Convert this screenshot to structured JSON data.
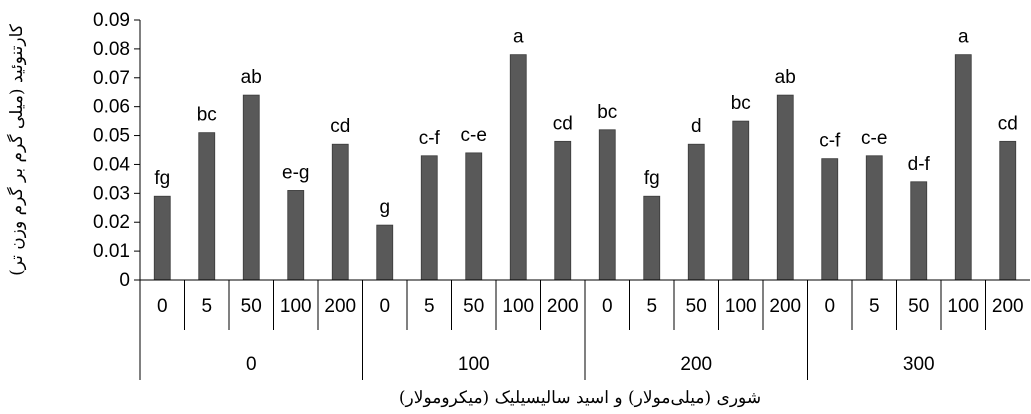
{
  "chart_data": {
    "type": "bar",
    "ylabel": "کارتنوئید (میلی گرم بر گرم وزن تر)",
    "xlabel": "شوری (میلی‌مولار) و اسید سالیسیلیک (میکرومولار)",
    "ylim": [
      0,
      0.09
    ],
    "yticks": [
      "0",
      "0.01",
      "0.02",
      "0.03",
      "0.04",
      "0.05",
      "0.06",
      "0.07",
      "0.08",
      "0.09"
    ],
    "grid": false,
    "legend": "none",
    "bar_color": "#595959",
    "groups": [
      {
        "label": "0",
        "categories": [
          "0",
          "5",
          "50",
          "100",
          "200"
        ],
        "values": [
          0.029,
          0.051,
          0.064,
          0.031,
          0.047
        ],
        "letters": [
          "fg",
          "bc",
          "ab",
          "e-g",
          "cd"
        ]
      },
      {
        "label": "100",
        "categories": [
          "0",
          "5",
          "50",
          "100",
          "200"
        ],
        "values": [
          0.019,
          0.043,
          0.044,
          0.078,
          0.048
        ],
        "letters": [
          "g",
          "c-f",
          "c-e",
          "a",
          "cd"
        ]
      },
      {
        "label": "200",
        "categories": [
          "0",
          "5",
          "50",
          "100",
          "200"
        ],
        "values": [
          0.052,
          0.029,
          0.047,
          0.055,
          0.064
        ],
        "letters": [
          "bc",
          "fg",
          "d",
          "bc",
          "ab"
        ]
      },
      {
        "label": "300",
        "categories": [
          "0",
          "5",
          "50",
          "100",
          "200"
        ],
        "values": [
          0.042,
          0.043,
          0.034,
          0.078,
          0.048
        ],
        "letters": [
          "c-f",
          "c-e",
          "d-f",
          "a",
          "cd"
        ]
      }
    ]
  }
}
